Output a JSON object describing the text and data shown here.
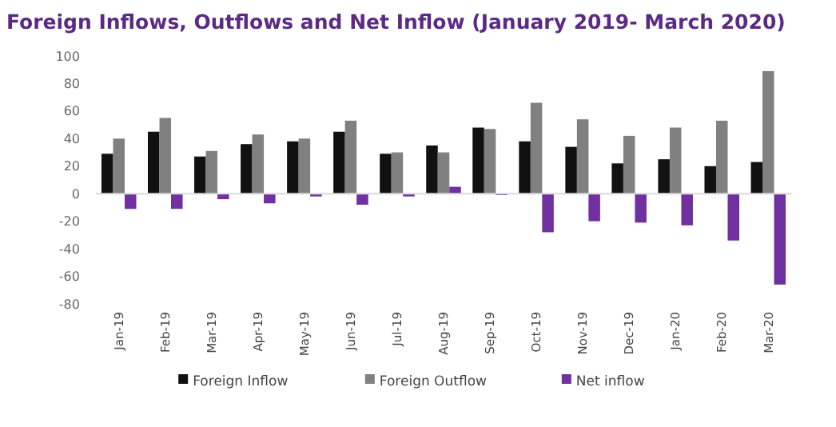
{
  "chart_data": {
    "type": "bar",
    "title": "Foreign Inflows, Outflows and Net Inflow (January 2019- March 2020)",
    "categories": [
      "Jan-19",
      "Feb-19",
      "Mar-19",
      "Apr-19",
      "May-19",
      "Jun-19",
      "Jul-19",
      "Aug-19",
      "Sep-19",
      "Oct-19",
      "Nov-19",
      "Dec-19",
      "Jan-20",
      "Feb-20",
      "Mar-20"
    ],
    "series": [
      {
        "name": "Foreign Inflow",
        "color": "#111111",
        "values": [
          29,
          45,
          27,
          36,
          38,
          45,
          29,
          35,
          48,
          38,
          34,
          22,
          25,
          20,
          23
        ]
      },
      {
        "name": "Foreign Outflow",
        "color": "#808080",
        "values": [
          40,
          55,
          31,
          43,
          40,
          53,
          30,
          30,
          47,
          66,
          54,
          42,
          48,
          53,
          89
        ]
      },
      {
        "name": "Net inflow",
        "color": "#7030a0",
        "values": [
          -11,
          -11,
          -4,
          -7,
          -2,
          -8,
          -2,
          5,
          -1,
          -28,
          -20,
          -21,
          -23,
          -34,
          -66
        ]
      }
    ],
    "ylim": [
      -80,
      100
    ],
    "yticks": [
      -80,
      -60,
      -40,
      -20,
      0,
      20,
      40,
      60,
      80,
      100
    ],
    "legend": "bottom"
  }
}
